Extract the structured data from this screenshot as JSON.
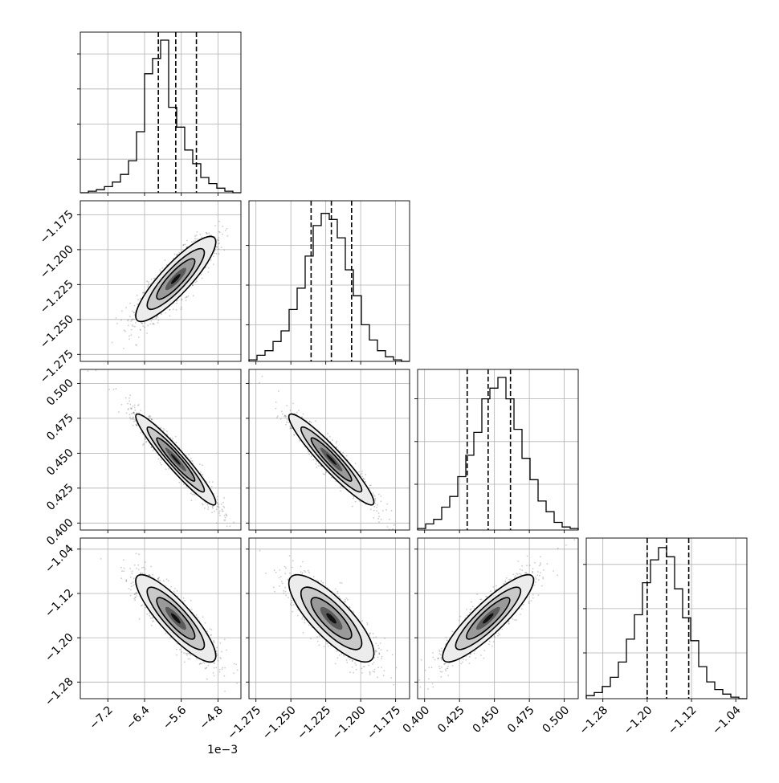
{
  "chart_data": {
    "type": "corner",
    "parameters": [
      {
        "index": 0,
        "range": [
          -7.8,
          -4.3
        ],
        "ticks": [
          -7.2,
          -6.4,
          -5.6,
          -4.8
        ],
        "tick_labels": [
          "−7.2",
          "−6.4",
          "−5.6",
          "−4.8"
        ],
        "offset_label": "1e−3",
        "quantiles": [
          -6.1,
          -5.72,
          -5.27
        ],
        "histogram": [
          0,
          0.01,
          0.02,
          0.04,
          0.07,
          0.12,
          0.21,
          0.4,
          0.78,
          0.88,
          1.0,
          0.56,
          0.43,
          0.28,
          0.19,
          0.1,
          0.06,
          0.03,
          0.01,
          0
        ],
        "hist_grid_fractions": [
          0.22,
          0.45,
          0.68,
          0.91
        ]
      },
      {
        "index": 1,
        "range": [
          -1.28,
          -1.165
        ],
        "ticks": [
          -1.275,
          -1.25,
          -1.225,
          -1.2,
          -1.175
        ],
        "tick_labels": [
          "−1.275",
          "−1.250",
          "−1.225",
          "−1.200",
          "−1.175"
        ],
        "quantiles": [
          -1.2355,
          -1.221,
          -1.2065
        ],
        "histogram": [
          0.01,
          0.04,
          0.07,
          0.13,
          0.2,
          0.34,
          0.48,
          0.69,
          0.89,
          0.97,
          0.93,
          0.81,
          0.6,
          0.43,
          0.24,
          0.14,
          0.07,
          0.03,
          0.01,
          0
        ],
        "hist_grid_fractions": [
          0.24,
          0.5,
          0.76
        ]
      },
      {
        "index": 2,
        "range": [
          0.395,
          0.51
        ],
        "ticks": [
          0.4,
          0.425,
          0.45,
          0.475,
          0.5
        ],
        "tick_labels": [
          "0.400",
          "0.425",
          "0.450",
          "0.475",
          "0.500"
        ],
        "quantiles": [
          0.4305,
          0.4455,
          0.4615
        ],
        "histogram": [
          0.01,
          0.04,
          0.07,
          0.15,
          0.22,
          0.35,
          0.49,
          0.64,
          0.86,
          0.93,
          1.0,
          0.86,
          0.66,
          0.47,
          0.33,
          0.19,
          0.12,
          0.05,
          0.02,
          0.01
        ],
        "hist_grid_fractions": [
          0.3,
          0.58,
          0.86
        ]
      },
      {
        "index": 3,
        "range": [
          -1.31,
          -1.02
        ],
        "ticks": [
          -1.28,
          -1.2,
          -1.12,
          -1.04
        ],
        "tick_labels": [
          "−1.28",
          "−1.20",
          "−1.12",
          "−1.04"
        ],
        "quantiles": [
          -1.2,
          -1.165,
          -1.125
        ],
        "histogram": [
          0.02,
          0.04,
          0.08,
          0.14,
          0.24,
          0.39,
          0.55,
          0.76,
          0.91,
          0.99,
          0.93,
          0.72,
          0.53,
          0.38,
          0.21,
          0.11,
          0.06,
          0.03,
          0.01,
          0
        ],
        "hist_grid_fractions": [
          0.3,
          0.59,
          0.88
        ]
      }
    ],
    "correlations": [
      {
        "x": 0,
        "y": 1,
        "rho": 0.87
      },
      {
        "x": 0,
        "y": 2,
        "rho": -0.95
      },
      {
        "x": 1,
        "y": 2,
        "rho": -0.94
      },
      {
        "x": 0,
        "y": 3,
        "rho": -0.86
      },
      {
        "x": 1,
        "y": 3,
        "rho": -0.8
      },
      {
        "x": 2,
        "y": 3,
        "rho": 0.88
      }
    ],
    "grid": true,
    "quantile_line_style": "dashed",
    "contour_levels": 3
  }
}
